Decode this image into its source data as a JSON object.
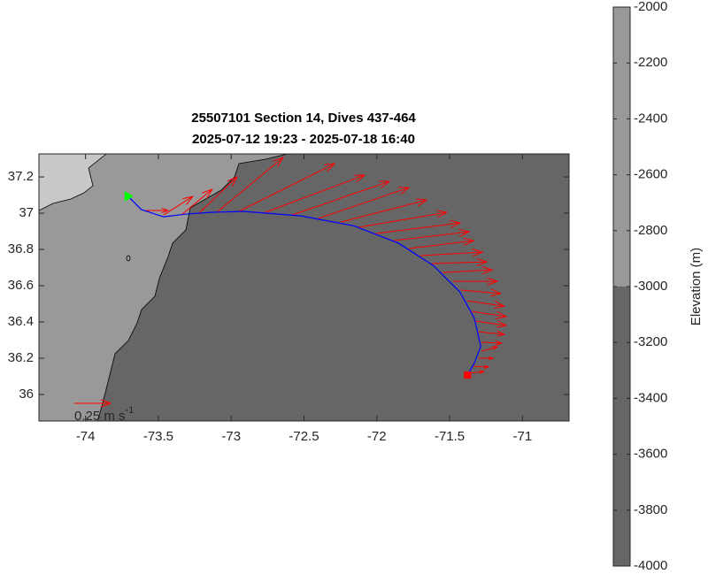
{
  "chart_data": {
    "type": "quiver-map",
    "title": [
      "25507101 Section 14, Dives 437-464",
      "2025-07-12 19:23 - 2025-07-18 16:40"
    ],
    "xlim": [
      -74.32,
      -70.68
    ],
    "ylim": [
      35.854,
      37.327
    ],
    "xticks": [
      -74,
      -73.5,
      -73,
      -72.5,
      -72,
      -71.5,
      -71
    ],
    "yticks": [
      36,
      36.2,
      36.4,
      36.6,
      36.8,
      37,
      37.2
    ],
    "track": {
      "color": "#0000ff",
      "x": [
        -73.708,
        -73.617,
        -73.465,
        -73.31,
        -73.13,
        -72.916,
        -72.52,
        -72.156,
        -71.85,
        -71.61,
        -71.43,
        -71.33,
        -71.286,
        -71.328,
        -71.377
      ],
      "y": [
        37.093,
        37.02,
        36.98,
        36.995,
        37.005,
        37.01,
        36.985,
        36.93,
        36.834,
        36.71,
        36.566,
        36.42,
        36.265,
        36.178,
        36.107
      ]
    },
    "start": {
      "x": -73.708,
      "y": 37.093,
      "color": "#00ff00"
    },
    "end": {
      "x": -71.377,
      "y": 36.107,
      "color": "#ff0000"
    },
    "quiver": {
      "color": "#ff0000",
      "x": [
        -73.586,
        -73.464,
        -73.343,
        -73.221,
        -73.099,
        -72.947,
        -72.765,
        -72.582,
        -72.4,
        -72.247,
        -72.126,
        -72.004,
        -71.882,
        -71.779,
        -71.7,
        -71.621,
        -71.548,
        -71.477,
        -71.422,
        -71.38,
        -71.349,
        -71.325,
        -71.301,
        -71.282,
        -71.282,
        -71.301,
        -71.337,
        -71.368
      ],
      "y": [
        37.015,
        36.99,
        36.99,
        37.0,
        37.005,
        37.01,
        37.005,
        36.99,
        36.971,
        36.951,
        36.922,
        36.888,
        36.849,
        36.805,
        36.766,
        36.722,
        36.673,
        36.624,
        36.576,
        36.517,
        36.459,
        36.405,
        36.346,
        36.288,
        36.239,
        36.2,
        36.156,
        36.117
      ],
      "u": [
        0.152,
        0.201,
        0.213,
        0.262,
        0.457,
        0.659,
        0.683,
        0.671,
        0.622,
        0.591,
        0.61,
        0.579,
        0.518,
        0.445,
        0.427,
        0.378,
        0.341,
        0.305,
        0.274,
        0.256,
        0.238,
        0.213,
        0.177,
        0.14,
        0.11,
        0.098,
        0.104,
        0.104
      ],
      "v": [
        0,
        0.128,
        0.177,
        0.25,
        0.378,
        0.329,
        0.256,
        0.232,
        0.213,
        0.152,
        0.104,
        0.073,
        0.061,
        0.055,
        0.024,
        0.012,
        0.018,
        0,
        -0.024,
        -0.037,
        -0.037,
        -0.03,
        -0.018,
        -0.006,
        0.03,
        0,
        -0.006,
        0.012
      ]
    },
    "reference_arrow": {
      "value": 0.25,
      "label": "0.25 m s",
      "exponent": "-1"
    },
    "colorbar": {
      "label": "Elevation (m)",
      "lim": [
        -4000,
        -2000
      ],
      "ticks": [
        -4000,
        -3800,
        -3600,
        -3400,
        -3200,
        -3000,
        -2800,
        -2600,
        -2400,
        -2200,
        -2000
      ],
      "bands": [
        {
          "from": -3000,
          "to": -2000,
          "color": "#999999"
        },
        {
          "from": -4000,
          "to": -3000,
          "color": "#666666"
        }
      ]
    }
  }
}
